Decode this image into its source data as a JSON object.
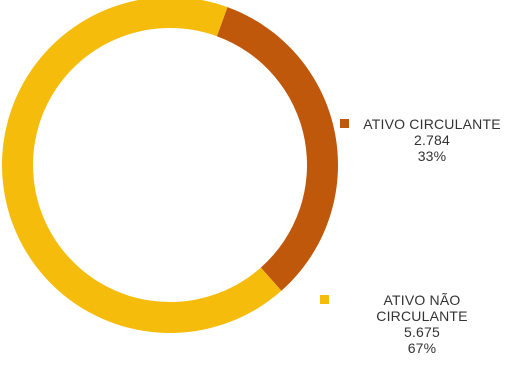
{
  "chart_data": {
    "type": "pie",
    "variant": "donut",
    "slices": [
      {
        "label": "ATIVO CIRCULANTE",
        "value": 2784,
        "value_text": "2.784",
        "percent_text": "33%",
        "color": "#C0580C"
      },
      {
        "label_line1": "ATIVO NÃO",
        "label_line2": "CIRCULANTE",
        "value": 5675,
        "value_text": "5.675",
        "percent_text": "67%",
        "color": "#F5BC0C"
      }
    ],
    "legend_position": "right"
  }
}
